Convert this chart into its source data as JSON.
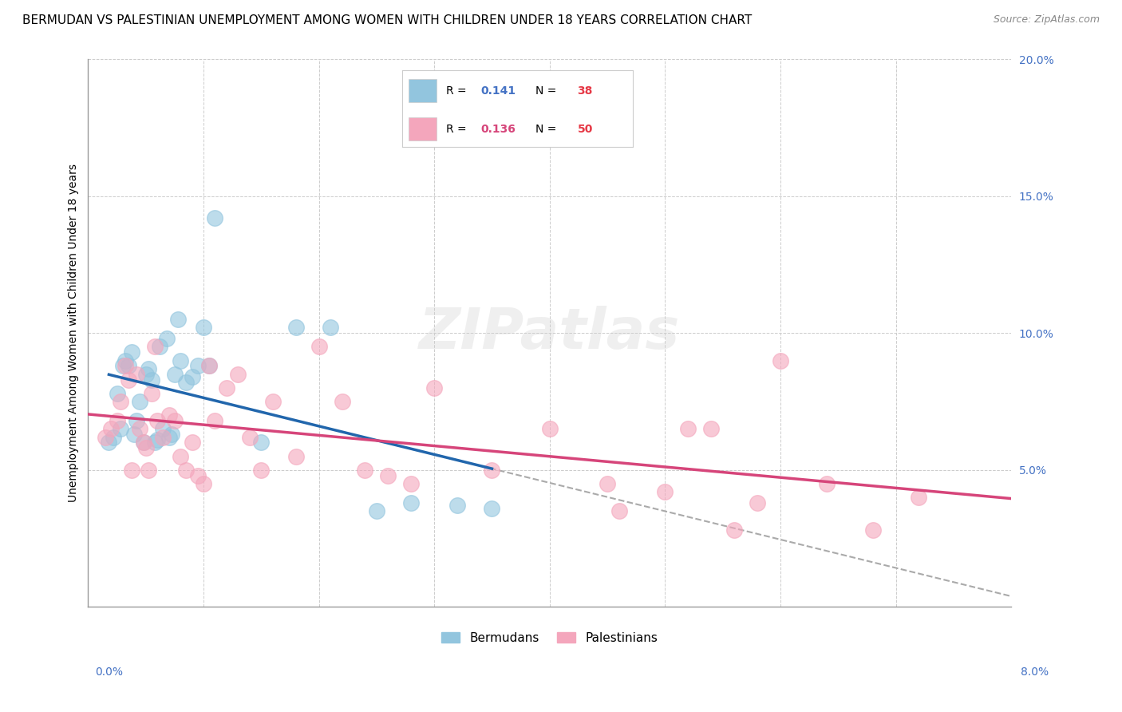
{
  "title": "BERMUDAN VS PALESTINIAN UNEMPLOYMENT AMONG WOMEN WITH CHILDREN UNDER 18 YEARS CORRELATION CHART",
  "source": "Source: ZipAtlas.com",
  "ylabel": "Unemployment Among Women with Children Under 18 years",
  "xlim": [
    0.0,
    8.0
  ],
  "ylim": [
    0.0,
    20.0
  ],
  "bermuda_color": "#92c5de",
  "palestine_color": "#f4a6bc",
  "bermuda_line_color": "#2166ac",
  "palestine_line_color": "#d6457a",
  "dashed_line_color": "#aaaaaa",
  "R_bermuda": 0.141,
  "N_bermuda": 38,
  "R_palestine": 0.136,
  "N_palestine": 50,
  "bermuda_scatter_x": [
    0.18,
    0.22,
    0.25,
    0.28,
    0.3,
    0.32,
    0.35,
    0.38,
    0.4,
    0.42,
    0.45,
    0.48,
    0.5,
    0.52,
    0.55,
    0.58,
    0.6,
    0.62,
    0.65,
    0.68,
    0.7,
    0.72,
    0.75,
    0.78,
    0.8,
    0.85,
    0.9,
    0.95,
    1.0,
    1.05,
    1.1,
    1.5,
    1.8,
    2.1,
    2.5,
    2.8,
    3.2,
    3.5
  ],
  "bermuda_scatter_y": [
    6.0,
    6.2,
    7.8,
    6.5,
    8.8,
    9.0,
    8.8,
    9.3,
    6.3,
    6.8,
    7.5,
    6.0,
    8.5,
    8.7,
    8.3,
    6.0,
    6.1,
    9.5,
    6.5,
    9.8,
    6.2,
    6.3,
    8.5,
    10.5,
    9.0,
    8.2,
    8.4,
    8.8,
    10.2,
    8.8,
    14.2,
    6.0,
    10.2,
    10.2,
    3.5,
    3.8,
    3.7,
    3.6
  ],
  "palestine_scatter_x": [
    0.15,
    0.2,
    0.25,
    0.28,
    0.32,
    0.35,
    0.38,
    0.42,
    0.45,
    0.48,
    0.5,
    0.52,
    0.55,
    0.58,
    0.6,
    0.65,
    0.7,
    0.75,
    0.8,
    0.85,
    0.9,
    0.95,
    1.0,
    1.05,
    1.1,
    1.2,
    1.3,
    1.4,
    1.5,
    1.6,
    1.8,
    2.0,
    2.2,
    2.4,
    2.6,
    2.8,
    3.0,
    3.5,
    4.0,
    4.5,
    4.6,
    5.0,
    5.2,
    5.4,
    5.6,
    5.8,
    6.0,
    6.4,
    6.8,
    7.2
  ],
  "palestine_scatter_y": [
    6.2,
    6.5,
    6.8,
    7.5,
    8.8,
    8.3,
    5.0,
    8.5,
    6.5,
    6.0,
    5.8,
    5.0,
    7.8,
    9.5,
    6.8,
    6.2,
    7.0,
    6.8,
    5.5,
    5.0,
    6.0,
    4.8,
    4.5,
    8.8,
    6.8,
    8.0,
    8.5,
    6.2,
    5.0,
    7.5,
    5.5,
    9.5,
    7.5,
    5.0,
    4.8,
    4.5,
    8.0,
    5.0,
    6.5,
    4.5,
    3.5,
    4.2,
    6.5,
    6.5,
    2.8,
    3.8,
    9.0,
    4.5,
    2.8,
    4.0
  ],
  "watermark_text": "ZIPatlas",
  "title_fontsize": 11,
  "source_fontsize": 9,
  "ylabel_fontsize": 10,
  "tick_fontsize": 10,
  "legend_fontsize": 11
}
